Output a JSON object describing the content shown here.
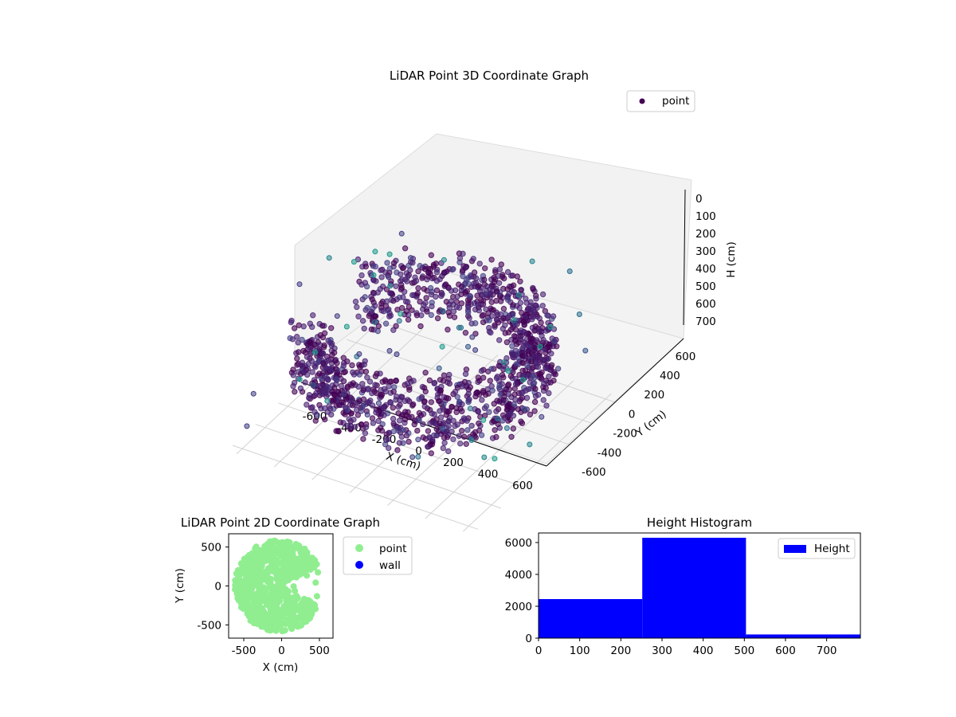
{
  "chart_data": [
    {
      "type": "scatter",
      "title": "LiDAR Point 3D Coordinate Graph",
      "xlabel": "X (cm)",
      "ylabel": "Y (cm)",
      "zlabel": "H (cm)",
      "legend": {
        "entries": [
          "point"
        ],
        "placement": "top-right"
      },
      "x_ticks": [
        "-600",
        "-400",
        "-200",
        "0",
        "200",
        "400",
        "600"
      ],
      "y_ticks": [
        "-600",
        "-400",
        "-200",
        "0",
        "200",
        "400",
        "600"
      ],
      "z_ticks": [
        "0",
        "100",
        "200",
        "300",
        "400",
        "500",
        "600",
        "700"
      ],
      "xlim": [
        -650,
        650
      ],
      "ylim": [
        -650,
        650
      ],
      "zlim": [
        0,
        750
      ],
      "z_axis_inverted": true,
      "grid": true,
      "colormap": "viridis",
      "shape": "near-circular wall of points around the origin (radius about 600 cm, opening toward +X), mostly heights 250-500 cm, with sparse outliers"
    },
    {
      "type": "scatter",
      "title": "LiDAR Point 2D Coordinate Graph",
      "xlabel": "X (cm)",
      "ylabel": "Y (cm)",
      "x_ticks": [
        "-500",
        "0",
        "500"
      ],
      "y_ticks": [
        "-500",
        "0",
        "500"
      ],
      "xlim": [
        -700,
        680
      ],
      "ylim": [
        -670,
        670
      ],
      "legend": {
        "entries": [
          "point",
          "wall"
        ],
        "placement": "outside-right"
      },
      "series": [
        {
          "name": "point",
          "color": "#90ee90",
          "shape": "filled disc of radius about 600 cm centred near the origin with a wedge cut out on the right (+X) side"
        },
        {
          "name": "wall",
          "color": "#0000ff",
          "points": []
        }
      ],
      "grid": false
    },
    {
      "type": "bar",
      "title": "Height Histogram",
      "legend": {
        "entries": [
          "Height"
        ],
        "placement": "top-right"
      },
      "bins": [
        {
          "from": 0,
          "to": 252,
          "count": 2450
        },
        {
          "from": 252,
          "to": 504,
          "count": 6300
        },
        {
          "from": 504,
          "to": 782,
          "count": 230
        }
      ],
      "x_ticks": [
        "0",
        "100",
        "200",
        "300",
        "400",
        "500",
        "600",
        "700"
      ],
      "y_ticks": [
        "0",
        "2000",
        "4000",
        "6000"
      ],
      "xlim": [
        0,
        782
      ],
      "ylim": [
        0,
        6600
      ],
      "color": "#0000ff",
      "grid": false
    }
  ]
}
